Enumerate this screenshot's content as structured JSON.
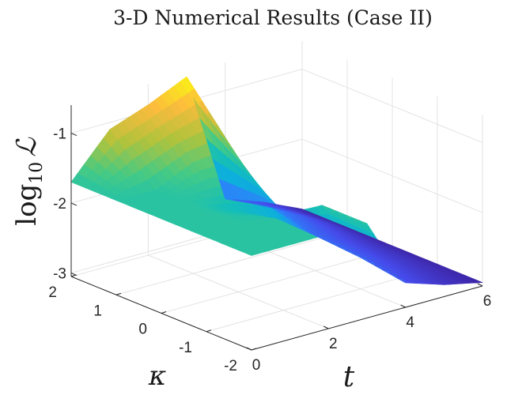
{
  "chart_data": {
    "type": "surface",
    "title": "3-D Numerical Results (Case II)",
    "xlabel": "t",
    "ylabel": "κ",
    "zlabel_base": "log",
    "zlabel_sub": "10",
    "zlabel_symbol": "ℒ",
    "xlim": [
      0,
      6
    ],
    "ylim": [
      -2,
      2
    ],
    "zlim": [
      -3.05,
      -0.6
    ],
    "x_ticks": [
      "0",
      "2",
      "4",
      "6"
    ],
    "x_tick_values": [
      0,
      2,
      4,
      6
    ],
    "y_ticks": [
      "-2",
      "-1",
      "0",
      "1",
      "2"
    ],
    "y_tick_values": [
      -2,
      -1,
      0,
      1,
      2
    ],
    "z_ticks": [
      "-3",
      "-2",
      "-1"
    ],
    "z_tick_values": [
      -3,
      -2,
      -1
    ],
    "grid": true,
    "colormap": "parula",
    "surface": {
      "t": [
        0,
        1,
        2,
        3,
        4,
        5,
        6
      ],
      "kappa": [
        2,
        1,
        0,
        -1,
        -2
      ],
      "log10_L": [
        [
          -1.7,
          -1.1,
          -0.9,
          -0.65,
          -2.55,
          -2.75,
          -3.0
        ],
        [
          -1.7,
          -1.7,
          -1.45,
          -1.4,
          -2.4,
          -2.7,
          -3.0
        ],
        [
          -1.7,
          -1.7,
          -1.9,
          -2.15,
          -2.55,
          -2.78,
          -3.0
        ],
        [
          -1.7,
          -1.7,
          -1.7,
          -1.7,
          -2.6,
          -2.82,
          -3.0
        ],
        [
          -1.7,
          -1.7,
          -1.7,
          -1.7,
          -2.7,
          -2.88,
          -3.0
        ]
      ]
    }
  }
}
